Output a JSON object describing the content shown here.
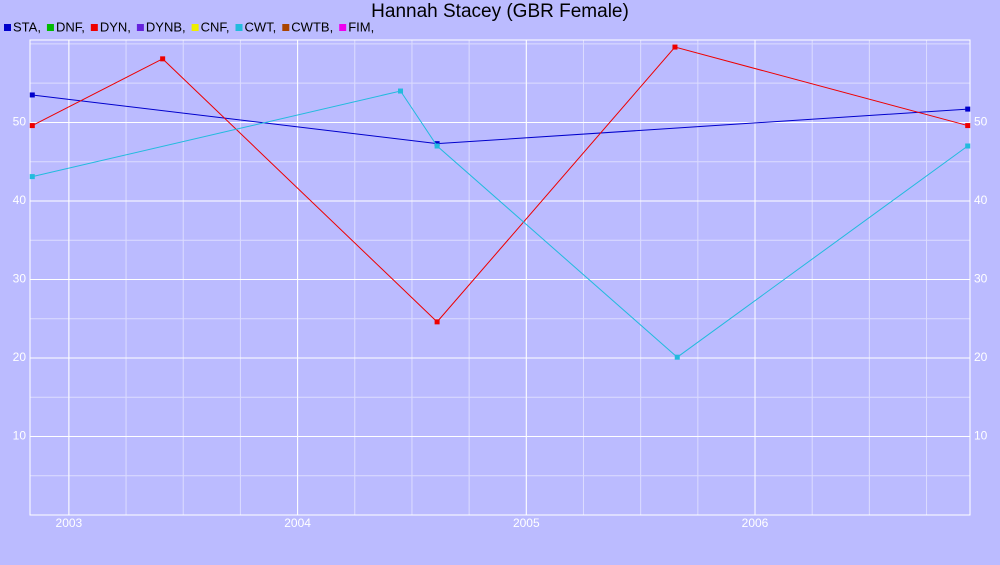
{
  "chart_data": {
    "type": "line",
    "title": "Hannah Stacey (GBR Female)",
    "xlim": [
      2002.83,
      2006.94
    ],
    "xticks": [
      2003,
      2004,
      2005,
      2006
    ],
    "ylim": [
      0,
      60.5
    ],
    "yticks": [
      10,
      20,
      30,
      40,
      50
    ],
    "grid": true,
    "series": [
      {
        "name": "STA,",
        "color": "#0000cc",
        "x": [
          2002.84,
          2004.61,
          2006.93
        ],
        "values": [
          53.5,
          47.3,
          51.7
        ]
      },
      {
        "name": "DNF,",
        "color": "#00bb00",
        "x": [],
        "values": []
      },
      {
        "name": "DYN,",
        "color": "#ee0000",
        "x": [
          2002.84,
          2003.41,
          2004.61,
          2005.65,
          2006.93
        ],
        "values": [
          49.6,
          58.1,
          24.6,
          59.6,
          49.6
        ]
      },
      {
        "name": "DYNB,",
        "color": "#6622dd",
        "x": [],
        "values": []
      },
      {
        "name": "CNF,",
        "color": "#eeee00",
        "x": [],
        "values": []
      },
      {
        "name": "CWT,",
        "color": "#22bbdd",
        "x": [
          2002.84,
          2004.45,
          2004.61,
          2005.66,
          2006.93
        ],
        "values": [
          43.1,
          54.0,
          47.0,
          20.1,
          47.0
        ]
      },
      {
        "name": "CWTB,",
        "color": "#aa4400",
        "x": [],
        "values": []
      },
      {
        "name": "FIM,",
        "color": "#ee00ee",
        "x": [],
        "values": []
      }
    ]
  }
}
